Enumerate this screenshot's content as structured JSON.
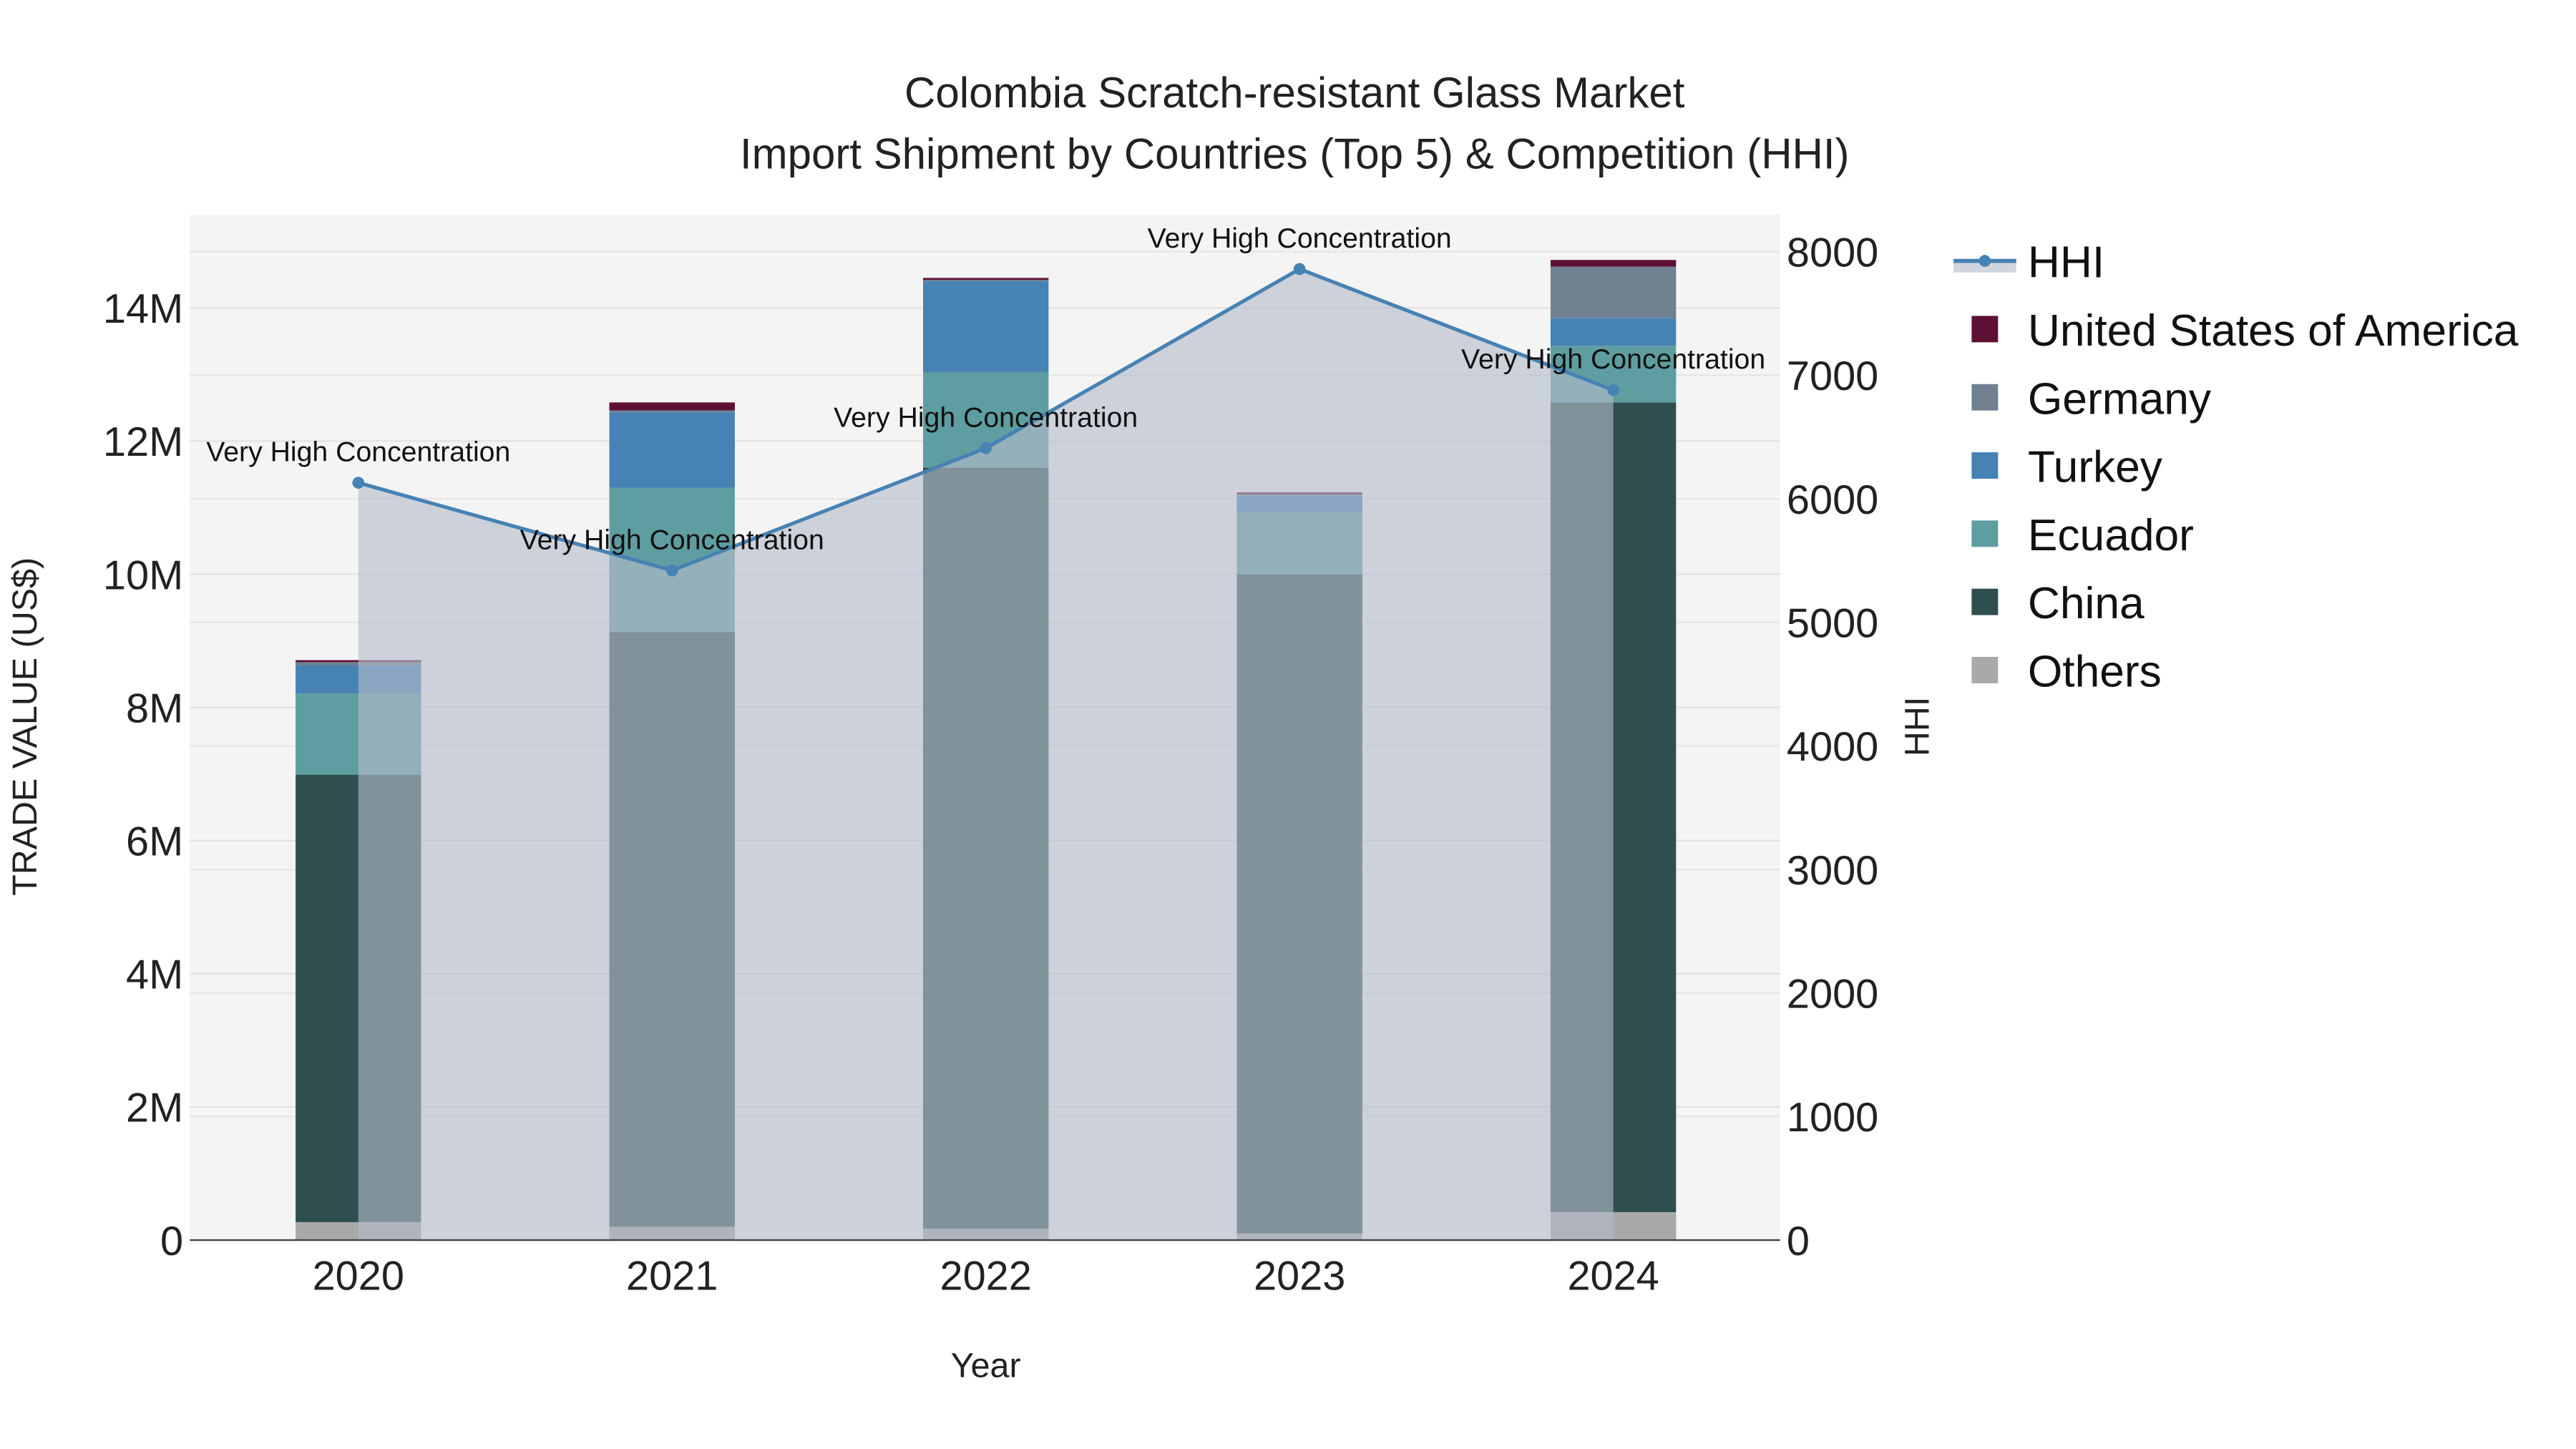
{
  "chart_data": {
    "type": "bar",
    "title": "Colombia Scratch-resistant Glass Market",
    "subtitle": "Import Shipment by Countries (Top 5) & Competition (HHI)",
    "xlabel": "Year",
    "ylabel": "TRADE VALUE (US$)",
    "y2label": "HHI",
    "ylim": [
      0,
      15400000
    ],
    "y2lim": [
      0,
      8300
    ],
    "yticks": [
      0,
      2000000,
      4000000,
      6000000,
      8000000,
      10000000,
      12000000,
      14000000
    ],
    "yticklabels": [
      "0",
      "2M",
      "4M",
      "6M",
      "8M",
      "10M",
      "12M",
      "14M"
    ],
    "y2ticks": [
      0,
      1000,
      2000,
      3000,
      4000,
      5000,
      6000,
      7000,
      8000
    ],
    "y2ticklabels": [
      "0",
      "1000",
      "2000",
      "3000",
      "4000",
      "5000",
      "6000",
      "7000",
      "8000"
    ],
    "categories": [
      "2020",
      "2021",
      "2022",
      "2023",
      "2024"
    ],
    "grid": true,
    "legend_position": "right",
    "series": [
      {
        "name": "Others",
        "color": "#a9a9a9",
        "values": [
          270000,
          200000,
          170000,
          100000,
          420000
        ]
      },
      {
        "name": "China",
        "color": "#2f4f4f",
        "values": [
          6720000,
          8930000,
          11430000,
          9900000,
          12160000
        ]
      },
      {
        "name": "Ecuador",
        "color": "#5f9ea0",
        "values": [
          1220000,
          2170000,
          1430000,
          930000,
          850000
        ]
      },
      {
        "name": "Turkey",
        "color": "#4682b4",
        "values": [
          420000,
          1130000,
          1370000,
          250000,
          420000
        ]
      },
      {
        "name": "Germany",
        "color": "#708090",
        "values": [
          50000,
          30000,
          20000,
          20000,
          770000
        ]
      },
      {
        "name": "United States of America",
        "color": "#5e1034",
        "values": [
          30000,
          120000,
          30000,
          30000,
          100000
        ]
      }
    ],
    "hhi": {
      "name": "HHI",
      "color": "#4682b4",
      "values": [
        6130,
        5420,
        6410,
        7860,
        6880
      ],
      "annotations": [
        "Very High Concentration",
        "Very High Concentration",
        "Very High Concentration",
        "Very High Concentration",
        "Very High Concentration"
      ]
    },
    "legend_order": [
      "HHI",
      "United States of America",
      "Germany",
      "Turkey",
      "Ecuador",
      "China",
      "Others"
    ]
  }
}
